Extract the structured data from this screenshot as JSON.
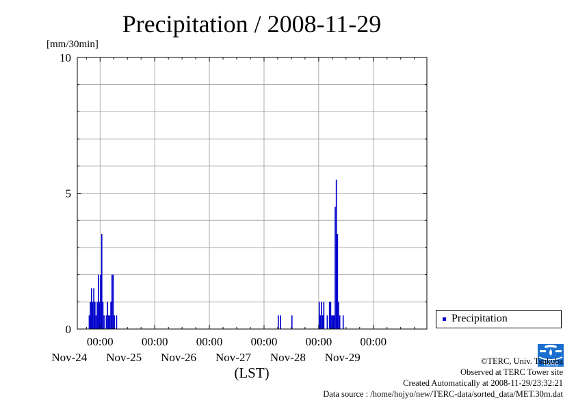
{
  "chart_data": {
    "type": "bar",
    "title": "Precipitation / 2008-11-29",
    "ylabel": "[mm/30min]",
    "xlabel": "(LST)",
    "ylim": [
      0,
      10
    ],
    "y_ticks": [
      "0",
      "5",
      "10"
    ],
    "x_range": [
      "2008-11-23T14:00",
      "2008-11-29T23:30"
    ],
    "x_ticks": [
      {
        "date": "2008-11-24T00:00",
        "time": "00:00",
        "day": "Nov-24"
      },
      {
        "date": "2008-11-25T00:00",
        "time": "00:00",
        "day": "Nov-25"
      },
      {
        "date": "2008-11-26T00:00",
        "time": "00:00",
        "day": "Nov-26"
      },
      {
        "date": "2008-11-27T00:00",
        "time": "00:00",
        "day": "Nov-27"
      },
      {
        "date": "2008-11-28T00:00",
        "time": "00:00",
        "day": "Nov-28"
      },
      {
        "date": "2008-11-29T00:00",
        "time": "00:00",
        "day": "Nov-29"
      }
    ],
    "grid": true,
    "legend_position": "right",
    "series": [
      {
        "name": "Precipitation",
        "color": "#0000cc",
        "points": [
          [
            "2008-11-23T19:00",
            0.5
          ],
          [
            "2008-11-23T19:30",
            1.0
          ],
          [
            "2008-11-23T20:00",
            1.5
          ],
          [
            "2008-11-23T20:30",
            1.0
          ],
          [
            "2008-11-23T21:00",
            1.5
          ],
          [
            "2008-11-23T21:30",
            1.0
          ],
          [
            "2008-11-23T22:00",
            0.5
          ],
          [
            "2008-11-23T22:30",
            1.0
          ],
          [
            "2008-11-23T23:00",
            2.0
          ],
          [
            "2008-11-23T23:30",
            1.0
          ],
          [
            "2008-11-24T00:00",
            2.0
          ],
          [
            "2008-11-24T00:30",
            3.5
          ],
          [
            "2008-11-24T01:00",
            1.0
          ],
          [
            "2008-11-24T01:30",
            0.5
          ],
          [
            "2008-11-24T02:30",
            0.5
          ],
          [
            "2008-11-24T03:00",
            1.0
          ],
          [
            "2008-11-24T03:30",
            0.5
          ],
          [
            "2008-11-24T04:00",
            0.5
          ],
          [
            "2008-11-24T04:30",
            1.0
          ],
          [
            "2008-11-24T05:00",
            2.0
          ],
          [
            "2008-11-24T05:30",
            2.0
          ],
          [
            "2008-11-24T06:00",
            0.5
          ],
          [
            "2008-11-24T07:00",
            0.5
          ],
          [
            "2008-11-27T06:00",
            0.5
          ],
          [
            "2008-11-27T07:00",
            0.5
          ],
          [
            "2008-11-27T12:00",
            0.5
          ],
          [
            "2008-11-28T00:00",
            1.0
          ],
          [
            "2008-11-28T00:30",
            0.5
          ],
          [
            "2008-11-28T01:00",
            1.0
          ],
          [
            "2008-11-28T01:30",
            0.5
          ],
          [
            "2008-11-28T02:00",
            1.0
          ],
          [
            "2008-11-28T03:30",
            0.5
          ],
          [
            "2008-11-28T04:30",
            1.0
          ],
          [
            "2008-11-28T05:00",
            1.0
          ],
          [
            "2008-11-28T05:30",
            0.5
          ],
          [
            "2008-11-28T06:00",
            0.5
          ],
          [
            "2008-11-28T06:30",
            0.5
          ],
          [
            "2008-11-28T07:00",
            4.5
          ],
          [
            "2008-11-28T07:30",
            5.5
          ],
          [
            "2008-11-28T08:00",
            3.5
          ],
          [
            "2008-11-28T08:30",
            1.0
          ],
          [
            "2008-11-28T09:00",
            0.5
          ],
          [
            "2008-11-28T10:30",
            0.5
          ]
        ]
      }
    ]
  },
  "legend": {
    "label": "Precipitation",
    "color": "#0000cc"
  },
  "credits": {
    "copyright": "©TERC, Univ. Tsukuba",
    "observed": "Observed at TERC Tower site",
    "created": "Created Automatically at 2008-11-29/23:32:21",
    "source": "Data source : /home/hojyo/new/TERC-data/sorted_data/MET.30m.dat"
  },
  "logo": {
    "text": "TERC",
    "color": "#1a6fd0"
  }
}
